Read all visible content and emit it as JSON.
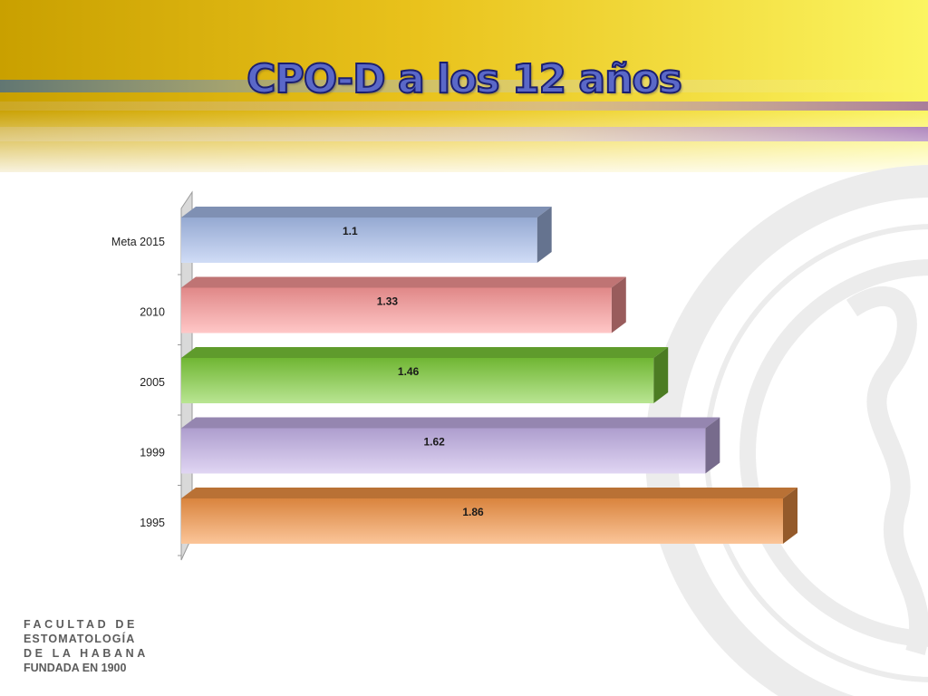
{
  "slide": {
    "title": "CPO-D a los 12 años"
  },
  "logo": {
    "lines": [
      "FACULTAD DE",
      "ESTOMATOLOGÍA",
      "DE LA HABANA",
      "FUNDADA EN 1900"
    ],
    "watermark_text": "FACULTAD DE ESTOMATOLOGÍA"
  },
  "chart_data": {
    "type": "bar",
    "orientation": "horizontal",
    "categories": [
      "Meta 2015",
      "2010",
      "2005",
      "1999",
      "1995"
    ],
    "values": [
      1.1,
      1.33,
      1.46,
      1.62,
      1.86
    ],
    "data_labels": [
      "1.1",
      "1.33",
      "1.46",
      "1.62",
      "1.86"
    ],
    "xlim": [
      0,
      1.86
    ],
    "grid": false,
    "legend": "none",
    "colors": [
      "#a9c0ef",
      "#ff9a9a",
      "#7fcf3a",
      "#c6b3ea",
      "#f79646"
    ]
  }
}
